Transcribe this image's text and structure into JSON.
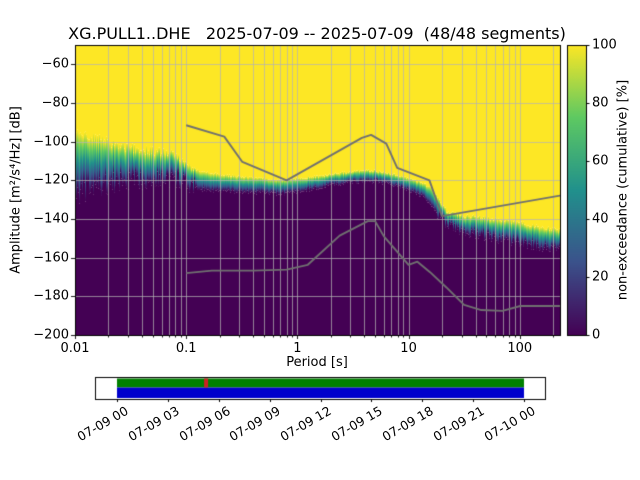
{
  "title": "XG.PULL1..DHE   2025-07-09 -- 2025-07-09  (48/48 segments)",
  "chart_data": {
    "type": "heatmap",
    "colormap": "viridis",
    "x": {
      "label": "Period [s]",
      "scale": "log",
      "min": 0.01,
      "max": 230,
      "tick_values": [
        0.01,
        0.1,
        1,
        10,
        100
      ],
      "tick_labels": [
        "0.01",
        "0.1",
        "1",
        "10",
        "100"
      ]
    },
    "y": {
      "label": "Amplitude [m²/s⁴/Hz] [dB]",
      "min": -200,
      "max": -50,
      "tick_values": [
        -60,
        -80,
        -100,
        -120,
        -140,
        -160,
        -180,
        -200
      ],
      "tick_labels": [
        "−60",
        "−80",
        "−100",
        "−120",
        "−140",
        "−160",
        "−180",
        "−200"
      ]
    },
    "colorbar": {
      "label": "non-exceedance (cumulative) [%]",
      "min": 0,
      "max": 100,
      "tick_values": [
        0,
        20,
        40,
        60,
        80,
        100
      ],
      "tick_labels": [
        "0",
        "20",
        "40",
        "60",
        "80",
        "100"
      ],
      "stops": [
        [
          0,
          "#440154"
        ],
        [
          0.25,
          "#3b528b"
        ],
        [
          0.5,
          "#21918c"
        ],
        [
          0.75,
          "#5ec962"
        ],
        [
          1,
          "#fde725"
        ]
      ]
    },
    "distribution": {
      "periods": [
        0.01,
        0.015,
        0.02,
        0.03,
        0.05,
        0.07,
        0.09,
        0.1,
        0.13,
        0.2,
        0.3,
        0.5,
        0.7,
        1.0,
        1.5,
        2.0,
        3.0,
        4.0,
        5.0,
        6.5,
        8.0,
        10,
        13,
        16,
        19,
        22,
        30,
        50,
        80,
        120,
        230
      ],
      "yellow_edge_db": [
        -95,
        -98,
        -100,
        -103,
        -105,
        -106,
        -108,
        -112,
        -115,
        -117,
        -118,
        -119,
        -120,
        -119,
        -118,
        -117,
        -115.5,
        -115,
        -115,
        -116,
        -117.5,
        -119,
        -121,
        -124,
        -130,
        -136,
        -138,
        -139.5,
        -141,
        -143,
        -146
      ],
      "dark_edge_db": [
        -127,
        -124,
        -122,
        -120.5,
        -119.5,
        -119,
        -120,
        -123,
        -124.5,
        -125.5,
        -126,
        -126.5,
        -127,
        -126,
        -124,
        -122.5,
        -121,
        -120.5,
        -120.5,
        -121.5,
        -123,
        -125,
        -128,
        -133,
        -139,
        -143,
        -146,
        -149,
        -151.5,
        -153,
        -156
      ]
    },
    "noise_models": {
      "color": "#707070",
      "high_noise_model": [
        [
          0.1,
          -91.5
        ],
        [
          0.22,
          -97.4
        ],
        [
          0.32,
          -110.5
        ],
        [
          0.8,
          -120.0
        ],
        [
          3.8,
          -98.0
        ],
        [
          4.6,
          -96.5
        ],
        [
          6.3,
          -101.0
        ],
        [
          7.9,
          -113.5
        ],
        [
          15.4,
          -120.0
        ],
        [
          20.0,
          -138.5
        ],
        [
          230.0,
          -127.9
        ]
      ],
      "low_noise_model": [
        [
          0.1,
          -168.0
        ],
        [
          0.17,
          -166.7
        ],
        [
          0.4,
          -166.7
        ],
        [
          0.8,
          -166.2
        ],
        [
          1.24,
          -163.7
        ],
        [
          2.4,
          -148.6
        ],
        [
          4.3,
          -141.1
        ],
        [
          5.0,
          -141.1
        ],
        [
          6.0,
          -149.0
        ],
        [
          10.0,
          -163.7
        ],
        [
          12.0,
          -162.1
        ],
        [
          15.6,
          -167.5
        ],
        [
          21.9,
          -175.4
        ],
        [
          31.6,
          -184.4
        ],
        [
          45.0,
          -187.1
        ],
        [
          70.0,
          -187.5
        ],
        [
          101.0,
          -185.0
        ],
        [
          154.0,
          -185.0
        ],
        [
          230.0,
          -185.0
        ]
      ]
    },
    "timeline": {
      "tick_labels": [
        "07-09 00",
        "07-09 03",
        "07-09 06",
        "07-09 09",
        "07-09 12",
        "07-09 15",
        "07-09 18",
        "07-09 21",
        "07-10 00"
      ],
      "used_color": "#008000",
      "data_color": "#0000cc",
      "gap_color": "#cc2222",
      "gap_fraction": 0.214
    }
  }
}
